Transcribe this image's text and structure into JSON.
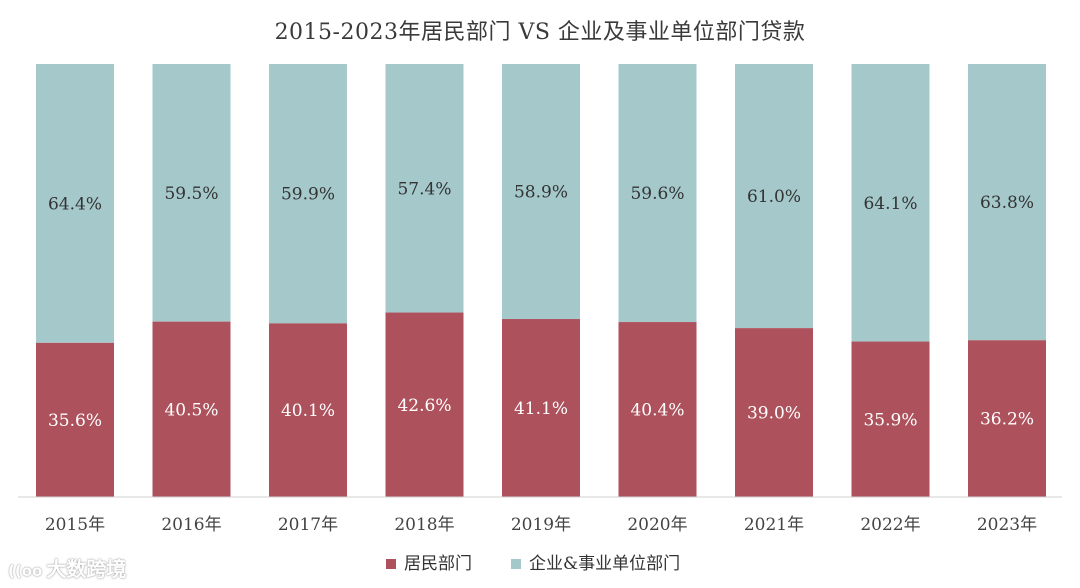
{
  "chart_data": {
    "type": "bar",
    "stacked": true,
    "normalized": true,
    "title": "2015-2023年居民部门 VS 企业及事业单位部门贷款",
    "categories": [
      "2015年",
      "2016年",
      "2017年",
      "2018年",
      "2019年",
      "2020年",
      "2021年",
      "2022年",
      "2023年"
    ],
    "series": [
      {
        "name": "居民部门",
        "color": "#ad525c",
        "values": [
          35.6,
          40.5,
          40.1,
          42.6,
          41.1,
          40.4,
          39.0,
          35.9,
          36.2
        ],
        "labels": [
          "35.6%",
          "40.5%",
          "40.1%",
          "42.6%",
          "41.1%",
          "40.4%",
          "39.0%",
          "35.9%",
          "36.2%"
        ]
      },
      {
        "name": "企业&事业单位部门",
        "color": "#a5c8cb",
        "values": [
          64.4,
          59.5,
          59.9,
          57.4,
          58.9,
          59.6,
          61.0,
          64.1,
          63.8
        ],
        "labels": [
          "64.4%",
          "59.5%",
          "59.9%",
          "57.4%",
          "58.9%",
          "59.6%",
          "61.0%",
          "64.1%",
          "63.8%"
        ]
      }
    ],
    "ylim": [
      0,
      100
    ],
    "grid": false,
    "legend_position": "bottom-center"
  },
  "watermark": {
    "text": "大数跨境",
    "logo": "((oo"
  }
}
